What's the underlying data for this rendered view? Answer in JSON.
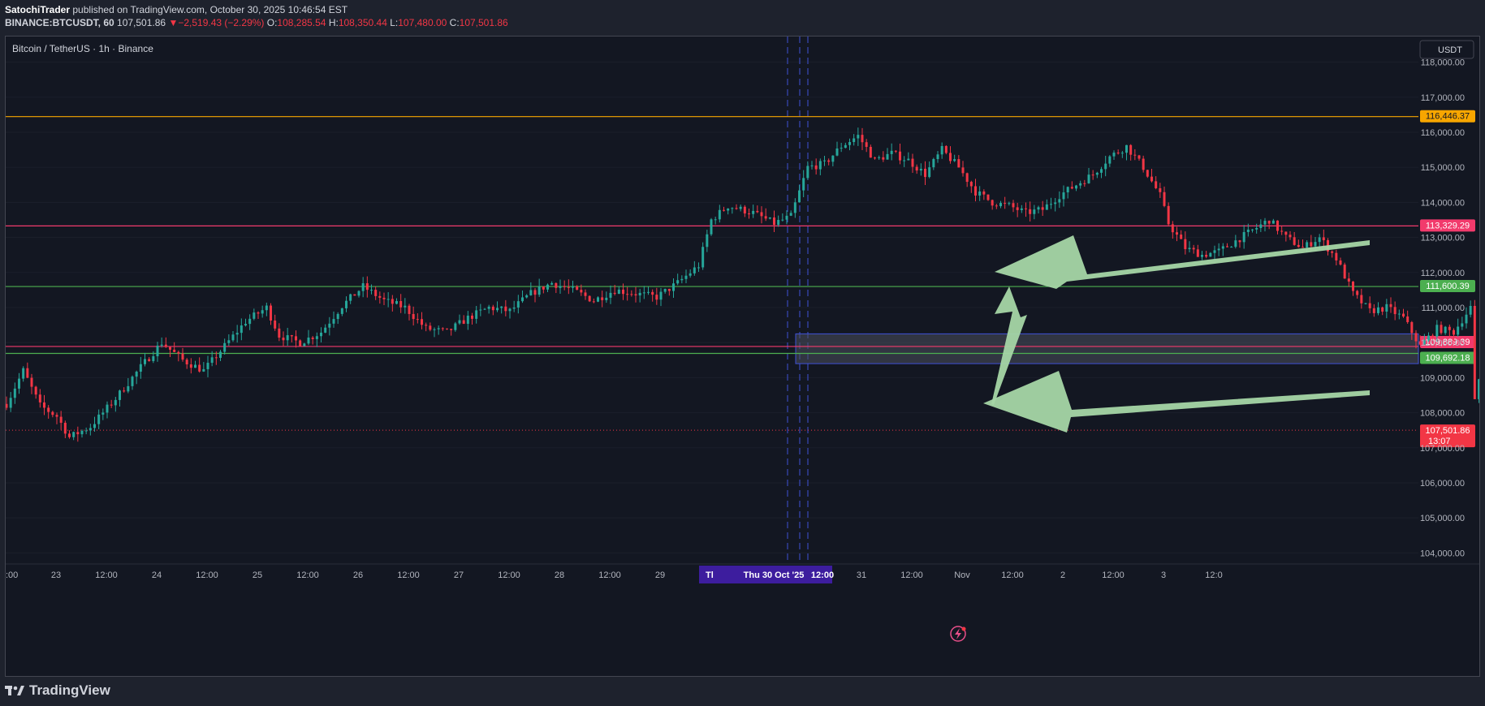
{
  "header": {
    "author": "SatochiTrader",
    "published": "published on TradingView.com, October 30, 2025 10:46:54 EST",
    "symbol": "BINANCE:BTCUSDT, 60",
    "last": "107,501.86",
    "change_arrow": "▼",
    "change": "−2,519.43 (−2.29%)",
    "o_label": "O:",
    "o": "108,285.54",
    "h_label": "H:",
    "h": "108,350.44",
    "l_label": "L:",
    "l": "107,480.00",
    "c_label": "C:",
    "c": "107,501.86"
  },
  "chart_title": "Bitcoin / TetherUS · 1h · Binance",
  "currency_button": "USDT",
  "footer": {
    "brand": "TradingView"
  },
  "colors": {
    "up": "#26a69a",
    "down": "#f23645",
    "orange": "#f7a600",
    "pink": "#f23a6c",
    "green": "#4caf50",
    "arrow": "#a5d6a7",
    "zone": "#4a4e5c",
    "crosshair": "#3f51d6",
    "time_badge": "#3d1d9e"
  },
  "chart_data": {
    "type": "candlestick",
    "x_ticks": [
      "23",
      "12:00",
      "24",
      "12:00",
      "25",
      "12:00",
      "26",
      "12:00",
      "27",
      "12:00",
      "28",
      "12:00",
      "29",
      "12:00",
      "Thu 30 Oct '25",
      "12:00",
      "31",
      "12:00",
      "Nov",
      "12:00",
      "2",
      "12:00",
      "3",
      "12:0"
    ],
    "x_tick_left_partial": ":00",
    "crosshair_label_partial": "Tl",
    "ylim": [
      103800,
      118500
    ],
    "y_ticks": [
      "104,000.00",
      "105,000.00",
      "106,000.00",
      "107,000.00",
      "108,000.00",
      "109,000.00",
      "110,000.00",
      "111,000.00",
      "112,000.00",
      "113,000.00",
      "114,000.00",
      "115,000.00",
      "116,000.00",
      "117,000.00",
      "118,000.00"
    ],
    "levels": [
      {
        "price": 116446.37,
        "label": "116,446.37",
        "color": "orange"
      },
      {
        "price": 113329.29,
        "label": "113,329.29",
        "color": "pink"
      },
      {
        "price": 111600.39,
        "label": "111,600.39",
        "color": "green"
      },
      {
        "price": 109889.39,
        "label": "109,889.39",
        "color": "pink"
      },
      {
        "price": 109692.18,
        "label": "109,692.18",
        "color": "green"
      }
    ],
    "current_price": {
      "label": "107,501.86",
      "countdown": "13:07"
    },
    "zone": {
      "top": 110250,
      "bottom": 109400
    },
    "path": [
      [
        0,
        108250
      ],
      [
        4,
        109200
      ],
      [
        8,
        108200
      ],
      [
        12,
        107900
      ],
      [
        15,
        107300
      ],
      [
        20,
        107600
      ],
      [
        26,
        108400
      ],
      [
        32,
        109300
      ],
      [
        37,
        110000
      ],
      [
        42,
        109500
      ],
      [
        47,
        109200
      ],
      [
        52,
        109900
      ],
      [
        57,
        110600
      ],
      [
        62,
        111000
      ],
      [
        65,
        110200
      ],
      [
        70,
        110000
      ],
      [
        75,
        110300
      ],
      [
        80,
        111050
      ],
      [
        85,
        111600
      ],
      [
        90,
        111200
      ],
      [
        95,
        111000
      ],
      [
        100,
        110400
      ],
      [
        105,
        110300
      ],
      [
        110,
        110700
      ],
      [
        115,
        111000
      ],
      [
        120,
        110900
      ],
      [
        125,
        111400
      ],
      [
        130,
        111700
      ],
      [
        135,
        111500
      ],
      [
        140,
        111200
      ],
      [
        145,
        111500
      ],
      [
        150,
        111400
      ],
      [
        155,
        111300
      ],
      [
        160,
        111700
      ],
      [
        165,
        112200
      ],
      [
        168,
        113500
      ],
      [
        172,
        113900
      ],
      [
        178,
        113700
      ],
      [
        183,
        113400
      ],
      [
        187,
        113600
      ],
      [
        191,
        115000
      ],
      [
        195,
        115100
      ],
      [
        199,
        115600
      ],
      [
        203,
        115900
      ],
      [
        207,
        115200
      ],
      [
        211,
        115400
      ],
      [
        215,
        115200
      ],
      [
        219,
        114800
      ],
      [
        223,
        115500
      ],
      [
        227,
        115000
      ],
      [
        231,
        114300
      ],
      [
        235,
        114000
      ],
      [
        239,
        113900
      ],
      [
        243,
        113700
      ],
      [
        247,
        113800
      ],
      [
        251,
        114200
      ],
      [
        255,
        114500
      ],
      [
        259,
        114800
      ],
      [
        263,
        115300
      ],
      [
        267,
        115600
      ],
      [
        271,
        115000
      ],
      [
        275,
        114200
      ],
      [
        277,
        113400
      ],
      [
        281,
        112700
      ],
      [
        285,
        112500
      ],
      [
        289,
        112600
      ],
      [
        293,
        112900
      ],
      [
        297,
        113200
      ],
      [
        301,
        113500
      ],
      [
        305,
        113000
      ],
      [
        309,
        112700
      ],
      [
        313,
        113000
      ],
      [
        317,
        112400
      ],
      [
        321,
        111400
      ],
      [
        325,
        110900
      ],
      [
        329,
        111000
      ],
      [
        333,
        110700
      ],
      [
        337,
        109900
      ],
      [
        341,
        110400
      ],
      [
        345,
        110300
      ],
      [
        349,
        111000
      ],
      [
        350,
        108300
      ],
      [
        352,
        109600
      ],
      [
        354,
        110800
      ],
      [
        356,
        111300
      ],
      [
        358,
        110500
      ],
      [
        360,
        110000
      ],
      [
        362,
        109700
      ],
      [
        364,
        107900
      ],
      [
        366,
        107600
      ],
      [
        368,
        107500
      ]
    ]
  }
}
